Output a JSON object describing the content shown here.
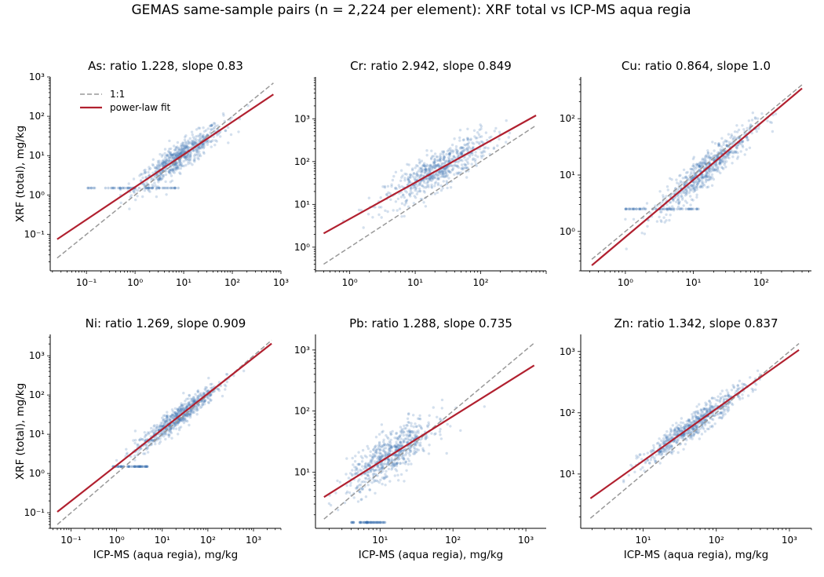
{
  "figure": {
    "suptitle": "GEMAS same-sample pairs (n = 2,224 per element): XRF total vs ICP-MS aqua regia",
    "xlabel": "ICP-MS (aqua regia), mg/kg",
    "ylabel": "XRF (total), mg/kg"
  },
  "legend": {
    "one_to_one": "1:1",
    "fit": "power-law fit"
  },
  "colors": {
    "points": "#3a72b0",
    "fit": "#b1202f",
    "one_to_one": "#999999"
  },
  "chart_data": [
    {
      "type": "scatter",
      "element": "As",
      "title": "As: ratio 1.228, slope 0.83",
      "ratio": 1.228,
      "slope": 0.83,
      "xscale": "log",
      "yscale": "log",
      "xlim": [
        0.018,
        1000
      ],
      "ylim": [
        0.0118,
        1000
      ],
      "xticks": [
        {
          "v": 0.1,
          "t": "10⁻¹"
        },
        {
          "v": 1,
          "t": "10⁰"
        },
        {
          "v": 10,
          "t": "10¹"
        },
        {
          "v": 100,
          "t": "10²"
        },
        {
          "v": 1000,
          "t": "10³"
        }
      ],
      "yticks": [
        {
          "v": 0.1,
          "t": "10⁻¹"
        },
        {
          "v": 1,
          "t": "10⁰"
        },
        {
          "v": 10,
          "t": "10¹"
        },
        {
          "v": 100,
          "t": "10²"
        },
        {
          "v": 1000,
          "t": "10³"
        }
      ],
      "fit_line": [
        [
          0.025,
          0.075
        ],
        [
          700,
          360
        ]
      ],
      "one_to_one": [
        [
          0.025,
          0.025
        ],
        [
          700,
          700
        ]
      ],
      "cloud": {
        "xmin": 0.5,
        "xmax": 600,
        "xcenter": 8,
        "xspread": 0.45,
        "scatter": 0.18,
        "detection_limit": {
          "y": 1.5,
          "xmin": 0.1,
          "xmax": 8
        }
      },
      "show_legend": true
    },
    {
      "type": "scatter",
      "element": "Cr",
      "title": "Cr: ratio 2.942, slope 0.849",
      "ratio": 2.942,
      "slope": 0.849,
      "xscale": "log",
      "yscale": "log",
      "xlim": [
        0.3,
        1000
      ],
      "ylim": [
        0.28,
        9500
      ],
      "xticks": [
        {
          "v": 1,
          "t": "10⁰"
        },
        {
          "v": 10,
          "t": "10¹"
        },
        {
          "v": 100,
          "t": "10²"
        }
      ],
      "yticks": [
        {
          "v": 1,
          "t": "10⁰"
        },
        {
          "v": 10,
          "t": "10¹"
        },
        {
          "v": 100,
          "t": "10²"
        },
        {
          "v": 1000,
          "t": "10³"
        }
      ],
      "fit_line": [
        [
          0.4,
          2.1
        ],
        [
          700,
          1200
        ]
      ],
      "one_to_one": [
        [
          0.4,
          0.4
        ],
        [
          700,
          700
        ]
      ],
      "cloud": {
        "xmin": 0.8,
        "xmax": 700,
        "xcenter": 22,
        "xspread": 0.4,
        "scatter": 0.22,
        "detection_limit": null
      },
      "show_legend": false
    },
    {
      "type": "scatter",
      "element": "Cu",
      "title": "Cu: ratio 0.864, slope 1.0",
      "ratio": 0.864,
      "slope": 1.0,
      "xscale": "log",
      "yscale": "log",
      "xlim": [
        0.22,
        550
      ],
      "ylim": [
        0.2,
        550
      ],
      "xticks": [
        {
          "v": 1,
          "t": "10⁰"
        },
        {
          "v": 10,
          "t": "10¹"
        },
        {
          "v": 100,
          "t": "10²"
        }
      ],
      "yticks": [
        {
          "v": 1,
          "t": "10⁰"
        },
        {
          "v": 10,
          "t": "10¹"
        },
        {
          "v": 100,
          "t": "10²"
        }
      ],
      "fit_line": [
        [
          0.32,
          0.25
        ],
        [
          400,
          345
        ]
      ],
      "one_to_one": [
        [
          0.32,
          0.32
        ],
        [
          400,
          400
        ]
      ],
      "cloud": {
        "xmin": 1,
        "xmax": 400,
        "xcenter": 15,
        "xspread": 0.35,
        "scatter": 0.15,
        "detection_limit": {
          "y": 2.5,
          "xmin": 1,
          "xmax": 12
        }
      },
      "show_legend": false
    },
    {
      "type": "scatter",
      "element": "Ni",
      "title": "Ni: ratio 1.269, slope 0.909",
      "ratio": 1.269,
      "slope": 0.909,
      "xscale": "log",
      "yscale": "log",
      "xlim": [
        0.035,
        4000
      ],
      "ylim": [
        0.04,
        3500
      ],
      "xticks": [
        {
          "v": 0.1,
          "t": "10⁻¹"
        },
        {
          "v": 1,
          "t": "10⁰"
        },
        {
          "v": 10,
          "t": "10¹"
        },
        {
          "v": 100,
          "t": "10²"
        },
        {
          "v": 1000,
          "t": "10³"
        }
      ],
      "yticks": [
        {
          "v": 0.1,
          "t": "10⁻¹"
        },
        {
          "v": 1,
          "t": "10⁰"
        },
        {
          "v": 10,
          "t": "10¹"
        },
        {
          "v": 100,
          "t": "10²"
        },
        {
          "v": 1000,
          "t": "10³"
        }
      ],
      "fit_line": [
        [
          0.05,
          0.105
        ],
        [
          2500,
          2050
        ]
      ],
      "one_to_one": [
        [
          0.05,
          0.05
        ],
        [
          2500,
          2500
        ]
      ],
      "cloud": {
        "xmin": 1,
        "xmax": 2500,
        "xcenter": 20,
        "xspread": 0.45,
        "scatter": 0.14,
        "detection_limit": {
          "y": 1.5,
          "xmin": 0.8,
          "xmax": 5
        }
      },
      "show_legend": false
    },
    {
      "type": "scatter",
      "element": "Pb",
      "title": "Pb: ratio 1.288, slope 0.735",
      "ratio": 1.288,
      "slope": 0.735,
      "xscale": "log",
      "yscale": "log",
      "xlim": [
        1.3,
        1900
      ],
      "ylim": [
        1.2,
        1800
      ],
      "xticks": [
        {
          "v": 10,
          "t": "10¹"
        },
        {
          "v": 100,
          "t": "10²"
        },
        {
          "v": 1000,
          "t": "10³"
        }
      ],
      "yticks": [
        {
          "v": 10,
          "t": "10¹"
        },
        {
          "v": 100,
          "t": "10²"
        },
        {
          "v": 1000,
          "t": "10³"
        }
      ],
      "fit_line": [
        [
          1.7,
          3.9
        ],
        [
          1300,
          560
        ]
      ],
      "one_to_one": [
        [
          1.7,
          1.7
        ],
        [
          1300,
          1300
        ]
      ],
      "cloud": {
        "xmin": 2,
        "xmax": 1200,
        "xcenter": 14,
        "xspread": 0.3,
        "scatter": 0.18,
        "detection_limit": {
          "y": 1.5,
          "xmin": 4,
          "xmax": 12
        }
      },
      "show_legend": false
    },
    {
      "type": "scatter",
      "element": "Zn",
      "title": "Zn: ratio 1.342, slope 0.837",
      "ratio": 1.342,
      "slope": 0.837,
      "xscale": "log",
      "yscale": "log",
      "xlim": [
        1.4,
        2000
      ],
      "ylim": [
        1.3,
        1900
      ],
      "xticks": [
        {
          "v": 10,
          "t": "10¹"
        },
        {
          "v": 100,
          "t": "10²"
        },
        {
          "v": 1000,
          "t": "10³"
        }
      ],
      "yticks": [
        {
          "v": 10,
          "t": "10¹"
        },
        {
          "v": 100,
          "t": "10²"
        },
        {
          "v": 1000,
          "t": "10³"
        }
      ],
      "fit_line": [
        [
          1.9,
          4.0
        ],
        [
          1350,
          1060
        ]
      ],
      "one_to_one": [
        [
          1.9,
          1.9
        ],
        [
          1350,
          1350
        ]
      ],
      "cloud": {
        "xmin": 4,
        "xmax": 1300,
        "xcenter": 50,
        "xspread": 0.35,
        "scatter": 0.1,
        "detection_limit": null
      },
      "show_legend": false
    }
  ]
}
